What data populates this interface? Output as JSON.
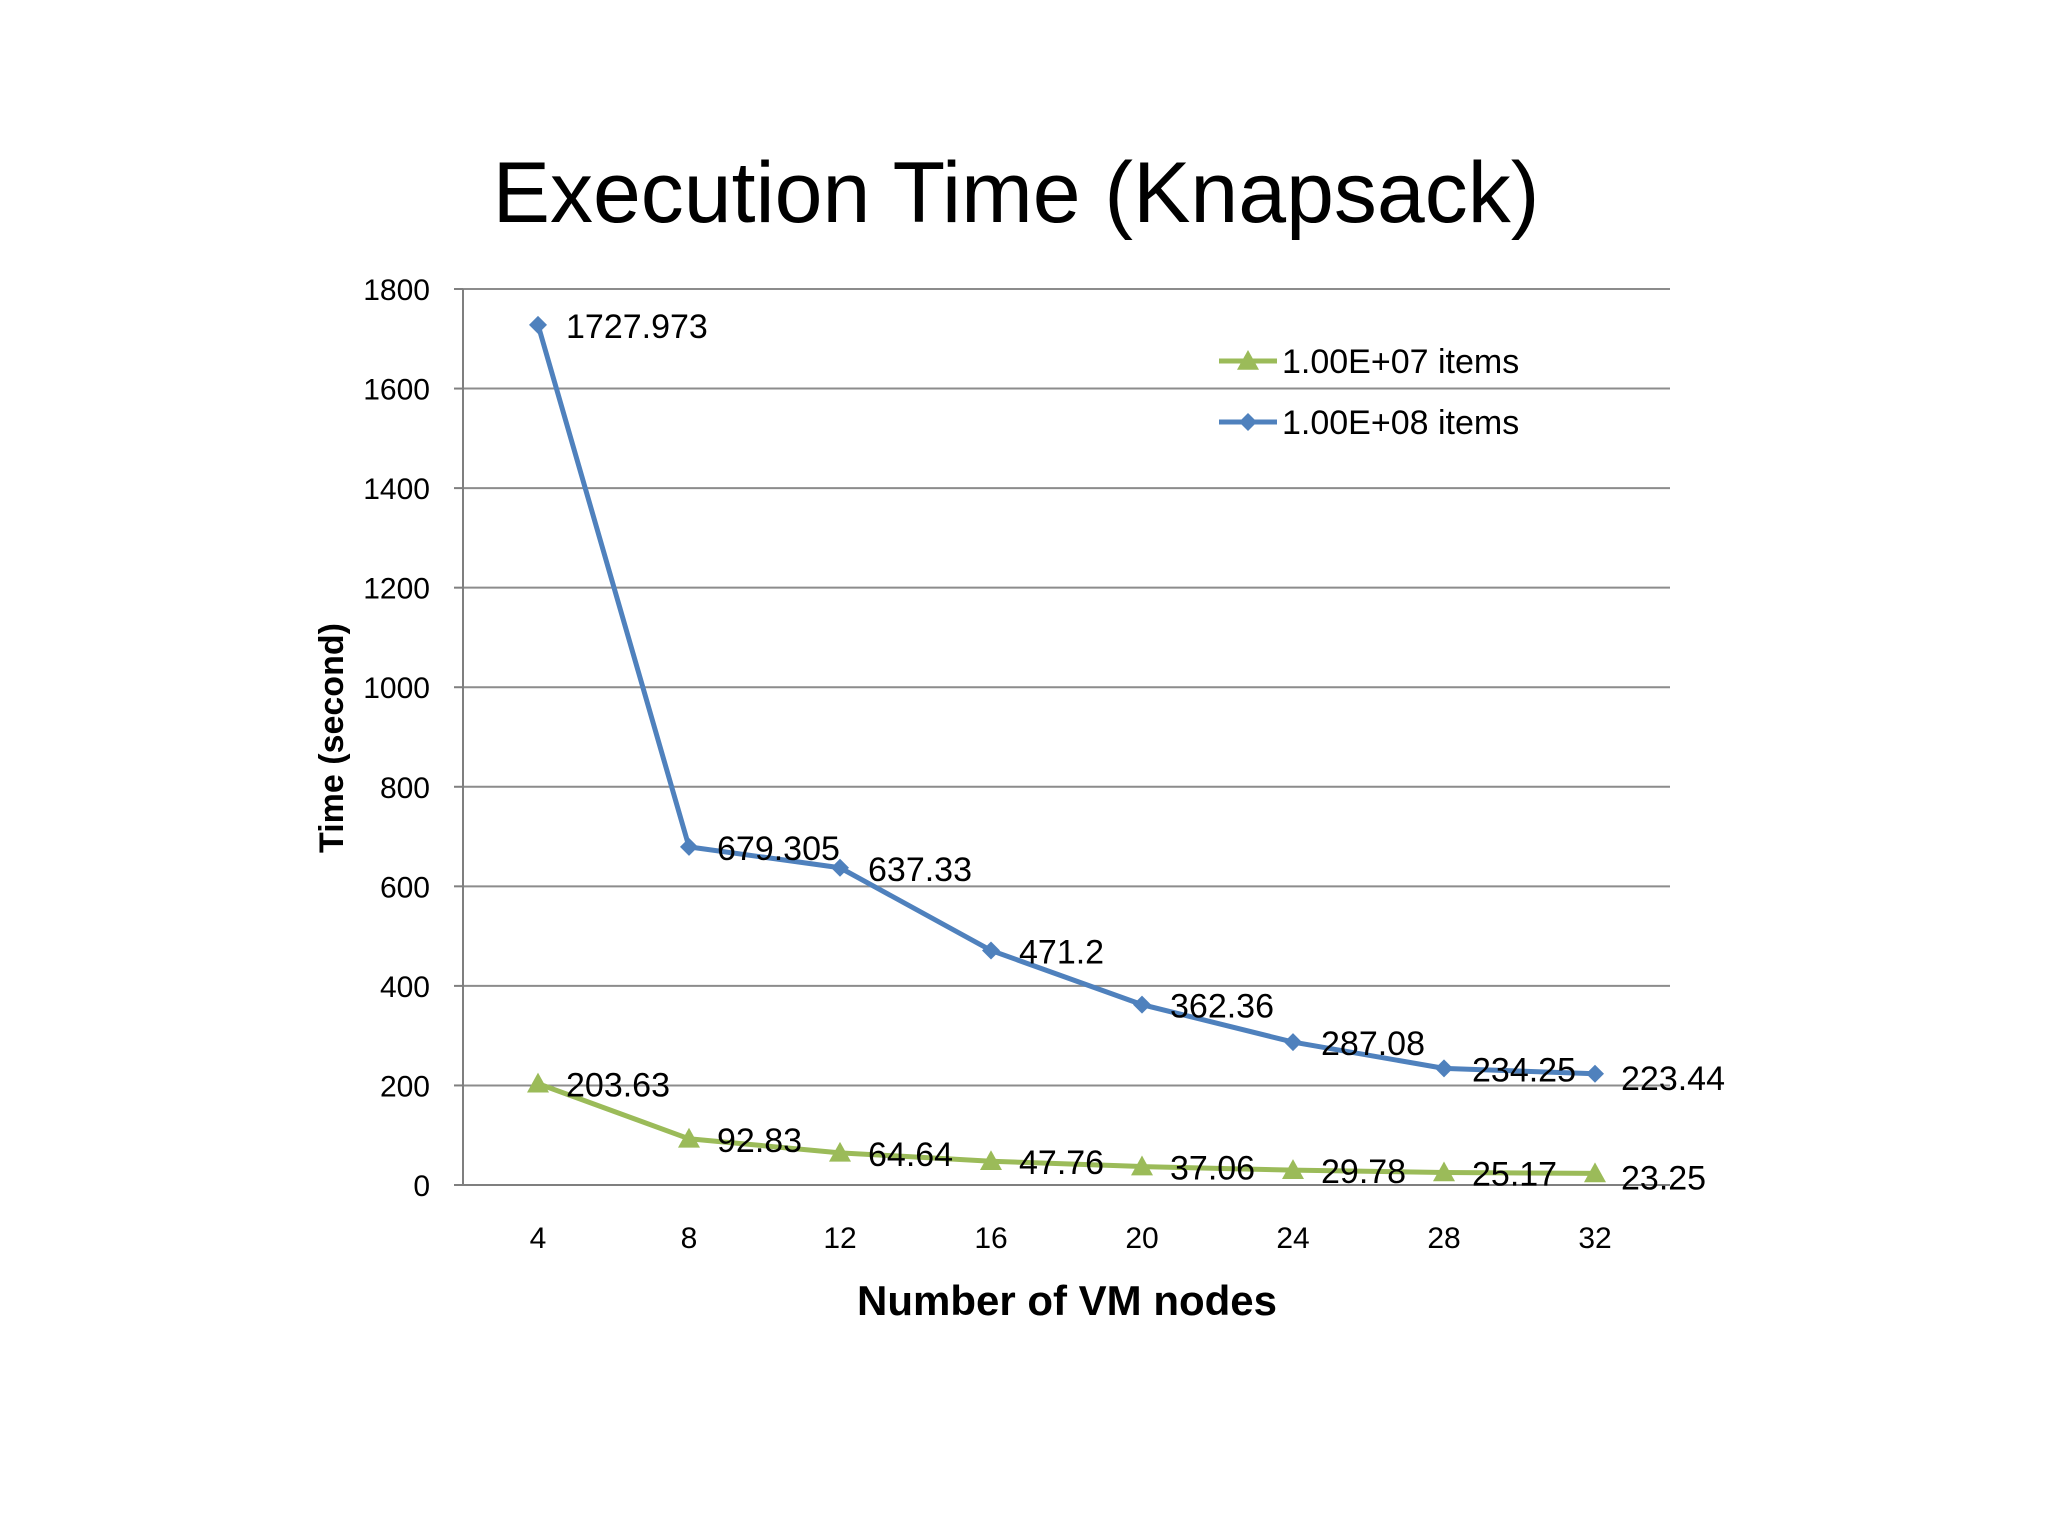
{
  "chart_data": {
    "type": "line",
    "title": "Execution Time (Knapsack)",
    "xlabel": "Number of VM nodes",
    "ylabel": "Time (second)",
    "categories": [
      "4",
      "8",
      "12",
      "16",
      "20",
      "24",
      "28",
      "32"
    ],
    "ylim": [
      0,
      1800
    ],
    "yticks": [
      "0",
      "200",
      "400",
      "600",
      "800",
      "1000",
      "1200",
      "1400",
      "1600",
      "1800"
    ],
    "grid": true,
    "legend_position": "top-right",
    "series": [
      {
        "name": "1.00E+07 items",
        "color": "#9bbb59",
        "marker": "triangle",
        "values": [
          203.63,
          92.83,
          64.64,
          47.76,
          37.06,
          29.78,
          25.17,
          23.25
        ],
        "labels": [
          "203.63",
          "92.83",
          "64.64",
          "47.76",
          "37.06",
          "29.78",
          "25.17",
          "23.25"
        ]
      },
      {
        "name": "1.00E+08 items",
        "color": "#4f81bd",
        "marker": "diamond",
        "values": [
          1727.973,
          679.305,
          637.33,
          471.2,
          362.36,
          287.08,
          234.25,
          223.44
        ],
        "labels": [
          "1727.973",
          "679.305",
          "637.33",
          "471.2",
          "362.36",
          "287.08",
          "234.25",
          "223.44"
        ]
      }
    ]
  }
}
